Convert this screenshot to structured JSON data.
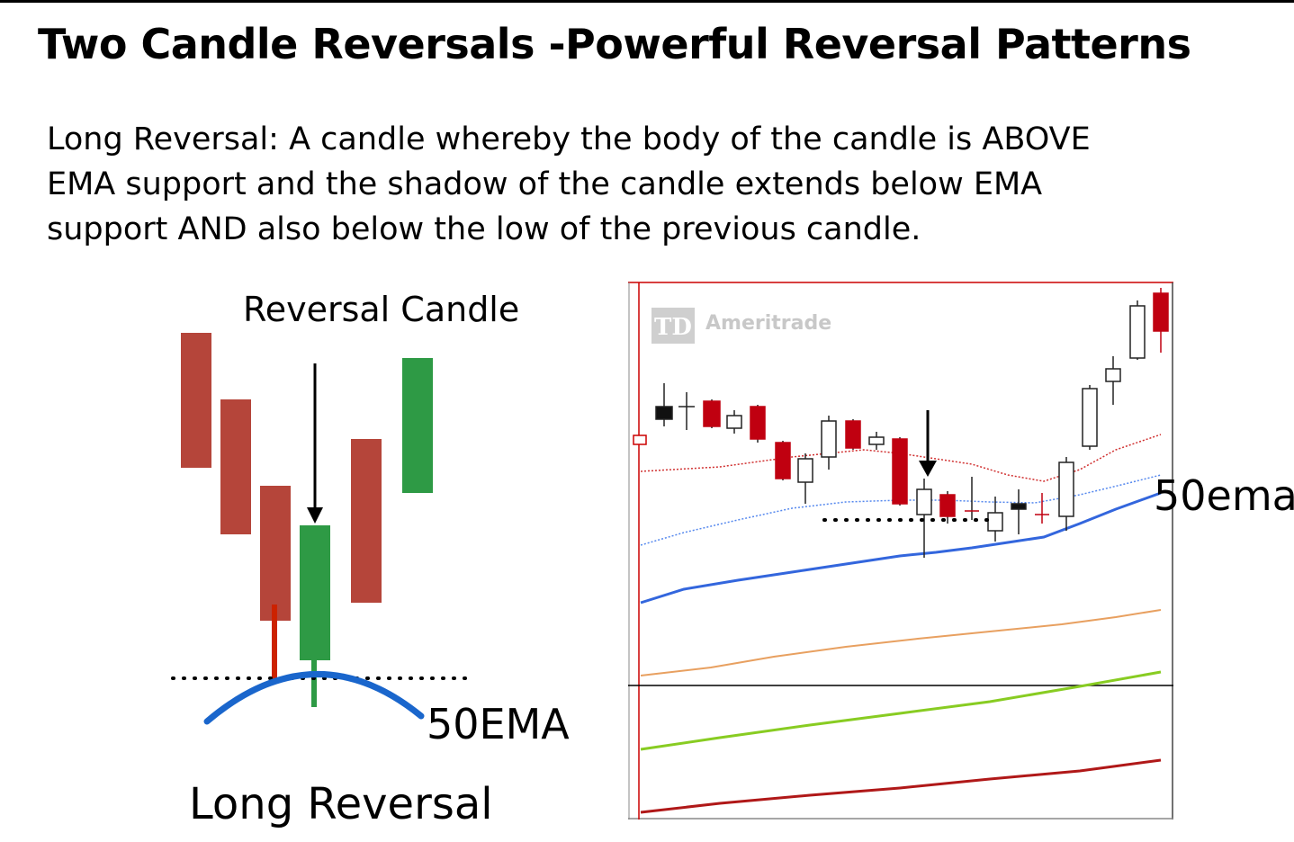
{
  "slide": {
    "title": "Two Candle Reversals -Powerful Reversal Patterns",
    "definition_lines": [
      "Long Reversal:  A candle whereby the body of the candle is ABOVE",
      "EMA support and the shadow of the candle extends below EMA",
      "support AND also below the low of the previous candle."
    ]
  },
  "diagram": {
    "reversal_label": "Reversal Candle",
    "ema_label": "50EMA",
    "caption": "Long Reversal",
    "colors": {
      "bearish": "#b5453a",
      "bullish": "#2e9a45",
      "ema_curve": "#1a66cc",
      "red_wick": "#cc2200"
    }
  },
  "chart": {
    "watermark": "Ameritrade",
    "watermark_logo": "TD",
    "ema_label": "50ema",
    "colors": {
      "up_candle": "#ffffff",
      "down_candle": "#c00010",
      "ema_blue": "#3366dd",
      "ema_orange": "#e8a060",
      "ema_green": "#88cc22",
      "ema_darkred": "#b01818",
      "border_red": "#cc0000"
    }
  }
}
